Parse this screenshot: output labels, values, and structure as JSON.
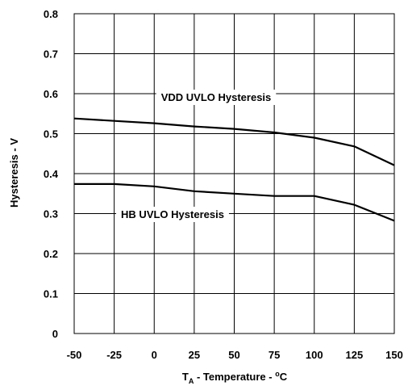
{
  "chart_data": {
    "type": "line",
    "xlabel_main": "T",
    "xlabel_sub": "A",
    "xlabel_rest": " - Temperature - ",
    "xlabel_deg": "o",
    "xlabel_unit": "C",
    "ylabel": "Hysteresis - V",
    "xlim": [
      -50,
      150
    ],
    "ylim": [
      0,
      0.8
    ],
    "grid": true,
    "x_ticks": [
      -50,
      -25,
      0,
      25,
      50,
      75,
      100,
      125,
      150
    ],
    "x_tick_labels": [
      "-50",
      "-25",
      "0",
      "25",
      "50",
      "75",
      "100",
      "125",
      "150"
    ],
    "y_ticks": [
      0,
      0.1,
      0.2,
      0.3,
      0.4,
      0.5,
      0.6,
      0.7,
      0.8
    ],
    "y_tick_labels": [
      "0",
      "0.1",
      "0.2",
      "0.3",
      "0.4",
      "0.5",
      "0.6",
      "0.7",
      "0.8"
    ],
    "series": [
      {
        "name": "VDD UVLO Hysteresis",
        "color": "#000000",
        "x": [
          -50,
          -25,
          0,
          25,
          50,
          75,
          100,
          125,
          150
        ],
        "y": [
          0.538,
          0.532,
          0.526,
          0.518,
          0.512,
          0.503,
          0.49,
          0.468,
          0.421
        ]
      },
      {
        "name": "HB UVLO Hysteresis",
        "color": "#000000",
        "x": [
          -50,
          -25,
          0,
          25,
          50,
          75,
          100,
          125,
          150
        ],
        "y": [
          0.374,
          0.374,
          0.368,
          0.356,
          0.35,
          0.344,
          0.344,
          0.322,
          0.282
        ]
      }
    ]
  }
}
